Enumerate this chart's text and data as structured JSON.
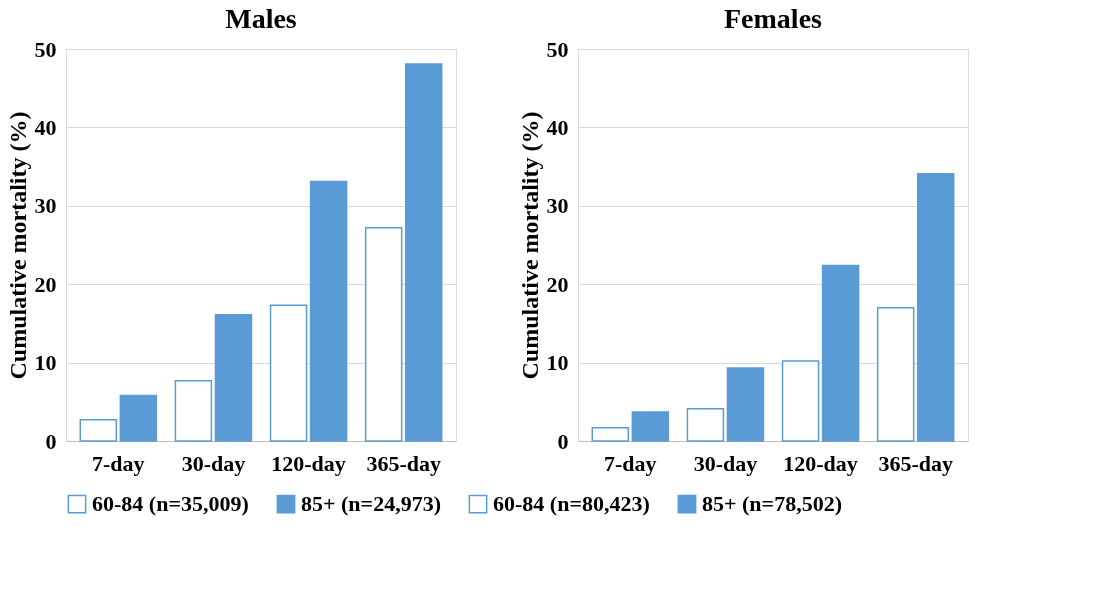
{
  "chart_data": [
    {
      "type": "bar",
      "title": "Males",
      "ylabel": "Cumulative mortality (%)",
      "categories": [
        "7-day",
        "30-day",
        "120-day",
        "365-day"
      ],
      "series": [
        {
          "name": "60-84 (n=35,009)",
          "color": "#ffffff",
          "values": [
            2.7,
            7.7,
            17.3,
            27.2
          ]
        },
        {
          "name": "85+ (n=24,973)",
          "color": "#5b9bd5",
          "values": [
            5.8,
            16.1,
            33.1,
            48.1
          ]
        }
      ],
      "ylim": [
        0,
        50
      ],
      "yticks": [
        0,
        10,
        20,
        30,
        40,
        50
      ],
      "grid": "y",
      "legend": "bottom"
    },
    {
      "type": "bar",
      "title": "Females",
      "ylabel": "Cumulative mortality (%)",
      "categories": [
        "7-day",
        "30-day",
        "120-day",
        "365-day"
      ],
      "series": [
        {
          "name": "60-84 (n=80,423)",
          "color": "#ffffff",
          "values": [
            1.7,
            4.1,
            10.2,
            17.0
          ]
        },
        {
          "name": "85+ (n=78,502)",
          "color": "#5b9bd5",
          "values": [
            3.7,
            9.3,
            22.4,
            34.1
          ]
        }
      ],
      "ylim": [
        0,
        50
      ],
      "yticks": [
        0,
        10,
        20,
        30,
        40,
        50
      ],
      "grid": "y",
      "legend": "bottom"
    }
  ]
}
